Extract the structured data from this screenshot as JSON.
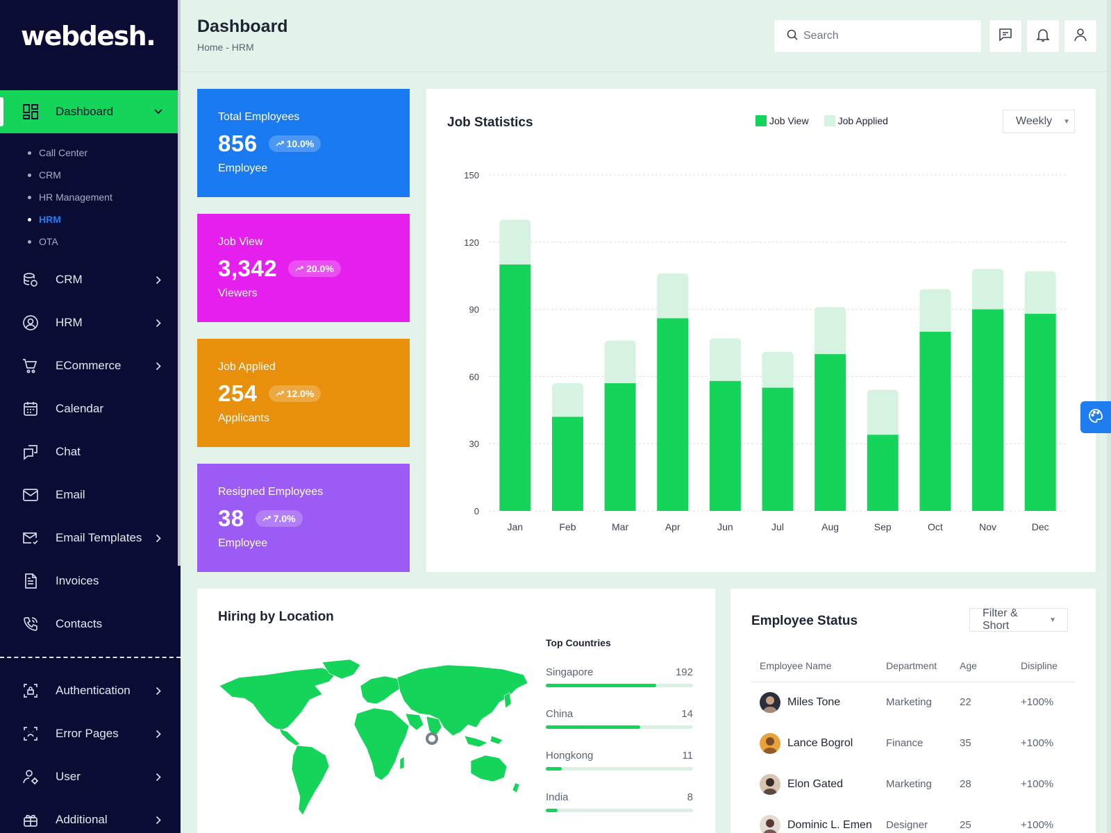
{
  "app": {
    "logo": "webdesh."
  },
  "sidebar": {
    "active": {
      "label": "Dashboard",
      "icon": "dashboard-icon"
    },
    "submenu": [
      {
        "label": "Call Center",
        "active": false
      },
      {
        "label": "CRM",
        "active": false
      },
      {
        "label": "HR Management",
        "active": false
      },
      {
        "label": "HRM",
        "active": true
      },
      {
        "label": "OTA",
        "active": false
      }
    ],
    "items": [
      {
        "label": "CRM",
        "icon": "database-icon",
        "arrow": true
      },
      {
        "label": "HRM",
        "icon": "user-circle-icon",
        "arrow": true
      },
      {
        "label": "ECommerce",
        "icon": "cart-icon",
        "arrow": true
      },
      {
        "label": "Calendar",
        "icon": "calendar-icon",
        "arrow": false
      },
      {
        "label": "Chat",
        "icon": "chat-icon",
        "arrow": false
      },
      {
        "label": "Email",
        "icon": "mail-icon",
        "arrow": false
      },
      {
        "label": "Email Templates",
        "icon": "mail-template-icon",
        "arrow": true
      },
      {
        "label": "Invoices",
        "icon": "invoice-icon",
        "arrow": false
      },
      {
        "label": "Contacts",
        "icon": "phone-icon",
        "arrow": false
      }
    ],
    "items2": [
      {
        "label": "Authentication",
        "icon": "lock-icon",
        "arrow": true
      },
      {
        "label": "Error Pages",
        "icon": "scan-icon",
        "arrow": true
      },
      {
        "label": "User",
        "icon": "user-gear-icon",
        "arrow": true
      },
      {
        "label": "Additional",
        "icon": "gift-icon",
        "arrow": true
      }
    ]
  },
  "header": {
    "title": "Dashboard",
    "breadcrumb": "Home - HRM",
    "search_placeholder": "Search"
  },
  "stats": [
    {
      "title": "Total Employees",
      "value": "856",
      "badge": "10.0%",
      "sub": "Employee",
      "color": "#1a7af1"
    },
    {
      "title": "Job View",
      "value": "3,342",
      "badge": "20.0%",
      "sub": "Viewers",
      "color": "#e51fee"
    },
    {
      "title": "Job Applied",
      "value": "254",
      "badge": "12.0%",
      "sub": "Applicants",
      "color": "#e8900c"
    },
    {
      "title": "Resigned Employees",
      "value": "38",
      "badge": "7.0%",
      "sub": "Employee",
      "color": "#9d5bf5"
    }
  ],
  "job_stats": {
    "title": "Job Statistics",
    "legend": [
      "Job View",
      "Job Applied"
    ],
    "period": "Weekly"
  },
  "chart_data": {
    "type": "bar",
    "stacked": true,
    "categories": [
      "Jan",
      "Feb",
      "Mar",
      "Apr",
      "Jun",
      "Jul",
      "Aug",
      "Sep",
      "Oct",
      "Nov",
      "Dec"
    ],
    "series": [
      {
        "name": "Job View",
        "color": "#14d45a",
        "values": [
          110,
          42,
          57,
          86,
          58,
          55,
          70,
          34,
          80,
          90,
          88
        ]
      },
      {
        "name": "Job Applied",
        "color": "#d5f3e0",
        "values": [
          20,
          15,
          19,
          20,
          19,
          16,
          21,
          20,
          19,
          18,
          19
        ]
      }
    ],
    "yticks": [
      0,
      30,
      60,
      90,
      120,
      150
    ],
    "ylim": [
      0,
      150
    ],
    "grid": true,
    "legend_position": "top"
  },
  "hiring": {
    "title": "Hiring by Location",
    "top_title": "Top Countries",
    "countries": [
      {
        "name": "Singapore",
        "value": "192",
        "fill": 0.75
      },
      {
        "name": "China",
        "value": "14",
        "fill": 0.64
      },
      {
        "name": "Hongkong",
        "value": "11",
        "fill": 0.11
      },
      {
        "name": "India",
        "value": "8",
        "fill": 0.08
      }
    ]
  },
  "employees": {
    "title": "Employee Status",
    "filter": "Filter & Short",
    "columns": [
      "Employee Name",
      "Department",
      "Age",
      "Disipline"
    ],
    "rows": [
      {
        "name": "Miles Tone",
        "department": "Marketing",
        "age": "22",
        "discipline": "+100%"
      },
      {
        "name": "Lance Bogrol",
        "department": "Finance",
        "age": "35",
        "discipline": "+100%"
      },
      {
        "name": "Elon Gated",
        "department": "Marketing",
        "age": "28",
        "discipline": "+100%"
      },
      {
        "name": "Dominic L. Emen",
        "department": "Designer",
        "age": "25",
        "discipline": "+100%"
      }
    ]
  }
}
